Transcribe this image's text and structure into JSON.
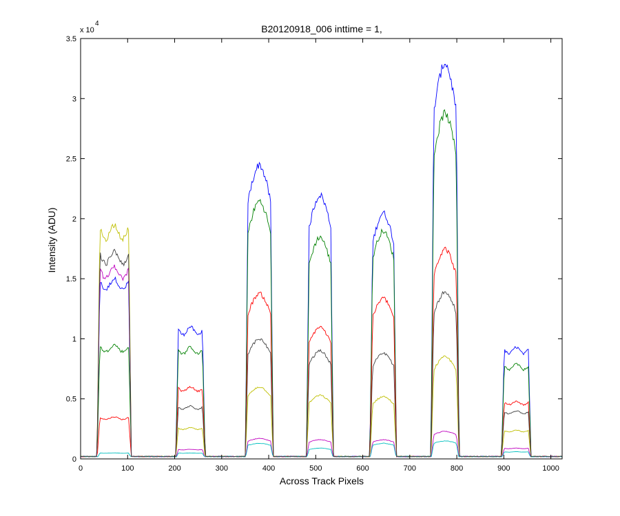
{
  "chart_data": {
    "type": "line",
    "title": "B20120918_006 inttime = 1,",
    "xlabel": "Across Track Pixels",
    "ylabel": "Intensity (ADU)",
    "y_multiplier": "x 10",
    "y_exponent": "4",
    "xlim": [
      0,
      1024
    ],
    "ylim": [
      0,
      35000
    ],
    "x_ticks": [
      0,
      100,
      200,
      300,
      400,
      500,
      600,
      700,
      800,
      900,
      1000
    ],
    "y_ticks": [
      0,
      5000,
      10000,
      15000,
      20000,
      25000,
      30000,
      35000
    ],
    "x_tick_labels": [
      "0",
      "100",
      "200",
      "300",
      "400",
      "500",
      "600",
      "700",
      "800",
      "900",
      "1000"
    ],
    "y_tick_labels": [
      "0",
      "0.5",
      "1",
      "1.5",
      "2",
      "2.5",
      "3",
      "3.5"
    ],
    "grid": false,
    "legend": "none",
    "baseline": 200,
    "segments": [
      {
        "start": 35,
        "end": 108,
        "shape": "flat"
      },
      {
        "start": 202,
        "end": 265,
        "shape": "flat"
      },
      {
        "start": 350,
        "end": 410,
        "shape": "peak"
      },
      {
        "start": 480,
        "end": 538,
        "shape": "peak"
      },
      {
        "start": 615,
        "end": 672,
        "shape": "peak"
      },
      {
        "start": 745,
        "end": 805,
        "shape": "peak"
      },
      {
        "start": 895,
        "end": 958,
        "shape": "flat"
      }
    ],
    "series": [
      {
        "color": "#0000ff",
        "peaks": [
          15000,
          11000,
          24500,
          22000,
          20500,
          33000,
          9300
        ]
      },
      {
        "color": "#008000",
        "peaks": [
          9500,
          9300,
          21500,
          18500,
          19000,
          28800,
          7900
        ]
      },
      {
        "color": "#ff0000",
        "peaks": [
          3500,
          6000,
          13800,
          11000,
          13400,
          17500,
          4800
        ]
      },
      {
        "color": "#bfbf00",
        "peaks": [
          19500,
          2600,
          6000,
          5300,
          5200,
          8500,
          2400
        ]
      },
      {
        "color": "#bf00bf",
        "peaks": [
          16000,
          800,
          1700,
          1600,
          1600,
          2300,
          900
        ]
      },
      {
        "color": "#00bfbf",
        "peaks": [
          500,
          500,
          1300,
          900,
          1300,
          1500,
          600
        ]
      },
      {
        "color": "#404040",
        "peaks": [
          17300,
          4400,
          10000,
          9000,
          8800,
          13900,
          4000
        ]
      }
    ]
  }
}
